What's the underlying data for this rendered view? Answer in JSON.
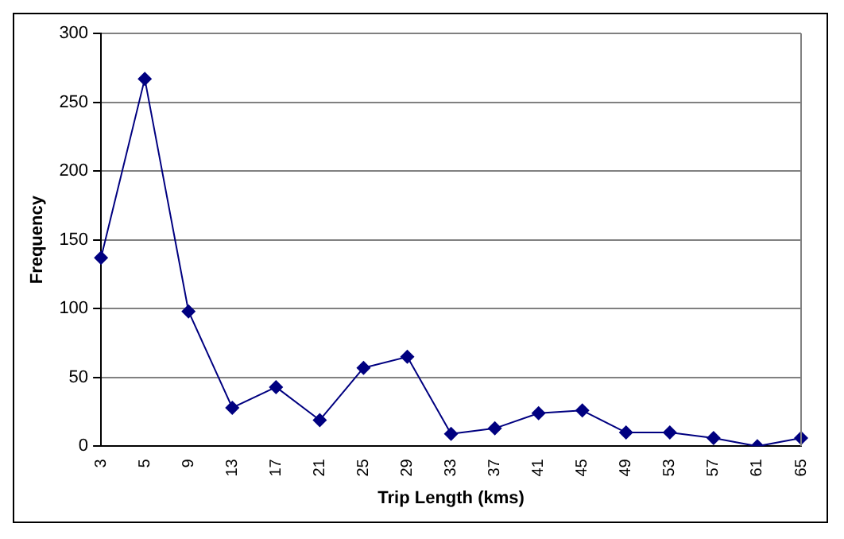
{
  "chart_data": {
    "type": "line",
    "xlabel": "Trip Length (kms)",
    "ylabel": "Frequency",
    "categories": [
      "3",
      "5",
      "9",
      "13",
      "17",
      "21",
      "25",
      "29",
      "33",
      "37",
      "41",
      "45",
      "49",
      "53",
      "57",
      "61",
      "65"
    ],
    "series": [
      {
        "color": "#000080",
        "values": [
          137,
          267,
          98,
          28,
          43,
          19,
          57,
          65,
          9,
          13,
          24,
          26,
          10,
          10,
          6,
          0,
          6
        ]
      }
    ],
    "ylim": [
      0,
      300
    ],
    "yticks": [
      0,
      50,
      100,
      150,
      200,
      250,
      300
    ],
    "grid": "y",
    "legend": false,
    "marker": "diamond",
    "line_style": "solid"
  }
}
